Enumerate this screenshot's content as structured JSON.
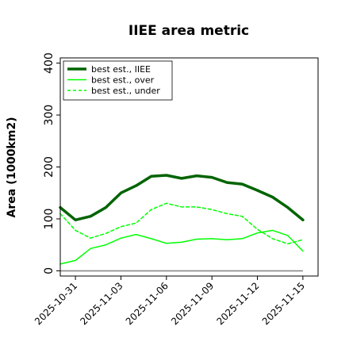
{
  "chart_data": {
    "type": "line",
    "title": "IIEE area metric",
    "xlabel": "",
    "ylabel": "Area (1000km2)",
    "x_ticks": [
      "2025-10-31",
      "2025-11-03",
      "2025-11-06",
      "2025-11-09",
      "2025-11-12",
      "2025-11-15"
    ],
    "y_ticks": [
      0,
      100,
      200,
      300,
      400
    ],
    "ylim": [
      -10,
      410
    ],
    "xlim": [
      "2025-10-30",
      "2025-11-16"
    ],
    "grid": false,
    "legend_position": "top-left",
    "x": [
      "2025-10-30",
      "2025-10-31",
      "2025-11-01",
      "2025-11-02",
      "2025-11-03",
      "2025-11-04",
      "2025-11-05",
      "2025-11-06",
      "2025-11-07",
      "2025-11-08",
      "2025-11-09",
      "2025-11-10",
      "2025-11-11",
      "2025-11-12",
      "2025-11-13",
      "2025-11-14",
      "2025-11-15"
    ],
    "series": [
      {
        "name": "best est., IIEE",
        "color": "#006400",
        "style": "solid-thick",
        "values": [
          122,
          98,
          105,
          122,
          150,
          164,
          182,
          184,
          178,
          183,
          180,
          170,
          167,
          155,
          142,
          122,
          98
        ]
      },
      {
        "name": "best est., over",
        "color": "#00ff00",
        "style": "solid",
        "values": [
          13,
          20,
          43,
          50,
          63,
          70,
          62,
          53,
          55,
          61,
          62,
          60,
          62,
          73,
          78,
          68,
          38
        ]
      },
      {
        "name": "best est., under",
        "color": "#00ff00",
        "style": "dashed",
        "values": [
          110,
          78,
          63,
          72,
          85,
          92,
          118,
          130,
          123,
          123,
          118,
          110,
          105,
          80,
          62,
          52,
          60
        ]
      }
    ],
    "reference_line": {
      "y": 0,
      "color": "#808080"
    }
  }
}
